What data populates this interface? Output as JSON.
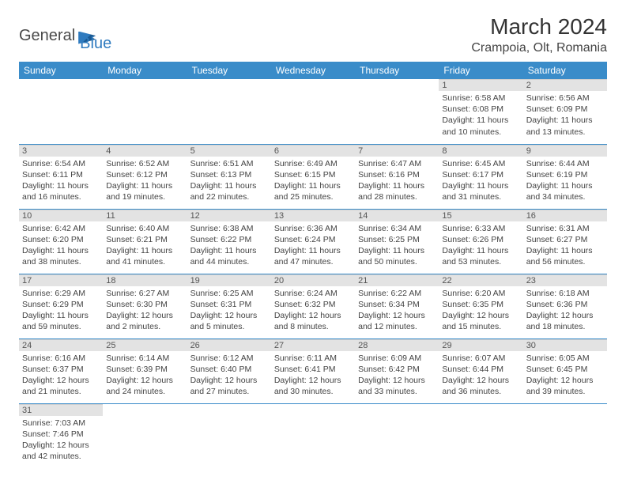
{
  "brand": {
    "general": "General",
    "blue": "Blue"
  },
  "title": "March 2024",
  "location": "Crampoia, Olt, Romania",
  "colors": {
    "header_bg": "#3a8cc9",
    "header_text": "#ffffff",
    "daynum_bg": "#e3e3e3",
    "row_divider": "#3a8cc9",
    "logo_blue": "#2f7bbf",
    "text": "#333333"
  },
  "weekdays": [
    "Sunday",
    "Monday",
    "Tuesday",
    "Wednesday",
    "Thursday",
    "Friday",
    "Saturday"
  ],
  "first_weekday_index": 5,
  "days": [
    {
      "n": 1,
      "sunrise": "6:58 AM",
      "sunset": "6:08 PM",
      "daylight": "11 hours and 10 minutes."
    },
    {
      "n": 2,
      "sunrise": "6:56 AM",
      "sunset": "6:09 PM",
      "daylight": "11 hours and 13 minutes."
    },
    {
      "n": 3,
      "sunrise": "6:54 AM",
      "sunset": "6:11 PM",
      "daylight": "11 hours and 16 minutes."
    },
    {
      "n": 4,
      "sunrise": "6:52 AM",
      "sunset": "6:12 PM",
      "daylight": "11 hours and 19 minutes."
    },
    {
      "n": 5,
      "sunrise": "6:51 AM",
      "sunset": "6:13 PM",
      "daylight": "11 hours and 22 minutes."
    },
    {
      "n": 6,
      "sunrise": "6:49 AM",
      "sunset": "6:15 PM",
      "daylight": "11 hours and 25 minutes."
    },
    {
      "n": 7,
      "sunrise": "6:47 AM",
      "sunset": "6:16 PM",
      "daylight": "11 hours and 28 minutes."
    },
    {
      "n": 8,
      "sunrise": "6:45 AM",
      "sunset": "6:17 PM",
      "daylight": "11 hours and 31 minutes."
    },
    {
      "n": 9,
      "sunrise": "6:44 AM",
      "sunset": "6:19 PM",
      "daylight": "11 hours and 34 minutes."
    },
    {
      "n": 10,
      "sunrise": "6:42 AM",
      "sunset": "6:20 PM",
      "daylight": "11 hours and 38 minutes."
    },
    {
      "n": 11,
      "sunrise": "6:40 AM",
      "sunset": "6:21 PM",
      "daylight": "11 hours and 41 minutes."
    },
    {
      "n": 12,
      "sunrise": "6:38 AM",
      "sunset": "6:22 PM",
      "daylight": "11 hours and 44 minutes."
    },
    {
      "n": 13,
      "sunrise": "6:36 AM",
      "sunset": "6:24 PM",
      "daylight": "11 hours and 47 minutes."
    },
    {
      "n": 14,
      "sunrise": "6:34 AM",
      "sunset": "6:25 PM",
      "daylight": "11 hours and 50 minutes."
    },
    {
      "n": 15,
      "sunrise": "6:33 AM",
      "sunset": "6:26 PM",
      "daylight": "11 hours and 53 minutes."
    },
    {
      "n": 16,
      "sunrise": "6:31 AM",
      "sunset": "6:27 PM",
      "daylight": "11 hours and 56 minutes."
    },
    {
      "n": 17,
      "sunrise": "6:29 AM",
      "sunset": "6:29 PM",
      "daylight": "11 hours and 59 minutes."
    },
    {
      "n": 18,
      "sunrise": "6:27 AM",
      "sunset": "6:30 PM",
      "daylight": "12 hours and 2 minutes."
    },
    {
      "n": 19,
      "sunrise": "6:25 AM",
      "sunset": "6:31 PM",
      "daylight": "12 hours and 5 minutes."
    },
    {
      "n": 20,
      "sunrise": "6:24 AM",
      "sunset": "6:32 PM",
      "daylight": "12 hours and 8 minutes."
    },
    {
      "n": 21,
      "sunrise": "6:22 AM",
      "sunset": "6:34 PM",
      "daylight": "12 hours and 12 minutes."
    },
    {
      "n": 22,
      "sunrise": "6:20 AM",
      "sunset": "6:35 PM",
      "daylight": "12 hours and 15 minutes."
    },
    {
      "n": 23,
      "sunrise": "6:18 AM",
      "sunset": "6:36 PM",
      "daylight": "12 hours and 18 minutes."
    },
    {
      "n": 24,
      "sunrise": "6:16 AM",
      "sunset": "6:37 PM",
      "daylight": "12 hours and 21 minutes."
    },
    {
      "n": 25,
      "sunrise": "6:14 AM",
      "sunset": "6:39 PM",
      "daylight": "12 hours and 24 minutes."
    },
    {
      "n": 26,
      "sunrise": "6:12 AM",
      "sunset": "6:40 PM",
      "daylight": "12 hours and 27 minutes."
    },
    {
      "n": 27,
      "sunrise": "6:11 AM",
      "sunset": "6:41 PM",
      "daylight": "12 hours and 30 minutes."
    },
    {
      "n": 28,
      "sunrise": "6:09 AM",
      "sunset": "6:42 PM",
      "daylight": "12 hours and 33 minutes."
    },
    {
      "n": 29,
      "sunrise": "6:07 AM",
      "sunset": "6:44 PM",
      "daylight": "12 hours and 36 minutes."
    },
    {
      "n": 30,
      "sunrise": "6:05 AM",
      "sunset": "6:45 PM",
      "daylight": "12 hours and 39 minutes."
    },
    {
      "n": 31,
      "sunrise": "7:03 AM",
      "sunset": "7:46 PM",
      "daylight": "12 hours and 42 minutes."
    }
  ],
  "labels": {
    "sunrise": "Sunrise:",
    "sunset": "Sunset:",
    "daylight": "Daylight:"
  }
}
